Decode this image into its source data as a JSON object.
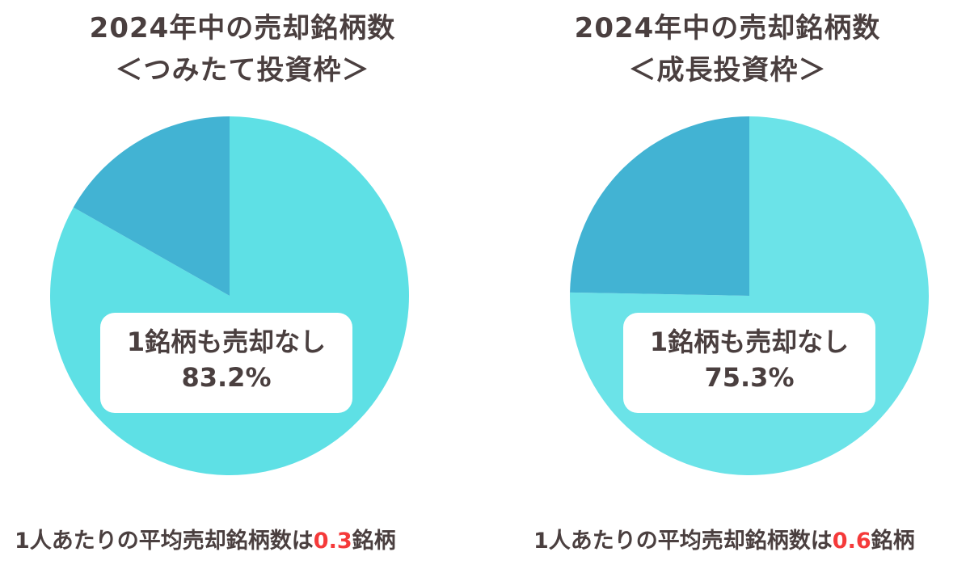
{
  "colors": {
    "main_left": "#5ee0e5",
    "main_right": "#6be3e8",
    "other": "#42b3d3",
    "text": "#4a3f3f",
    "accent": "#f53a3a"
  },
  "chart_data": [
    {
      "type": "pie",
      "title": "2024年中の売却銘柄数",
      "subtitle": "＜つみたて投資枠＞",
      "slices": [
        {
          "label": "1銘柄も売却なし",
          "value": 83.2,
          "value_text": "83.2%"
        },
        {
          "label": "",
          "value": 16.8
        }
      ],
      "footer": {
        "prefix": "1人あたりの平均売却銘柄数は",
        "value": "0.3",
        "suffix": "銘柄"
      }
    },
    {
      "type": "pie",
      "title": "2024年中の売却銘柄数",
      "subtitle": "＜成長投資枠＞",
      "slices": [
        {
          "label": "1銘柄も売却なし",
          "value": 75.3,
          "value_text": "75.3%"
        },
        {
          "label": "",
          "value": 24.7
        }
      ],
      "footer": {
        "prefix": "1人あたりの平均売却銘柄数は",
        "value": "0.6",
        "suffix": "銘柄"
      }
    }
  ]
}
